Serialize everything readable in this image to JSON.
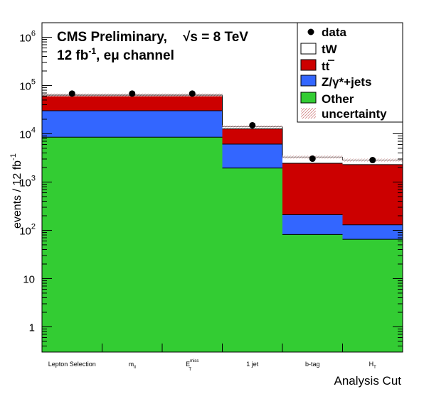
{
  "header": {
    "line1": "CMS Preliminary,",
    "sqrt_s": "√s = 8 TeV",
    "lumi": "12 fb",
    "lumi_exp": "-1",
    "channel": ", eμ channel"
  },
  "chart_data": {
    "type": "bar",
    "stacked": true,
    "log_y": true,
    "xlabel": "Analysis Cut",
    "ylabel": "events / 12 fb",
    "ylabel_exp": "-1",
    "ylim": [
      0.3,
      2000000
    ],
    "y_ticks": [
      {
        "value": 1,
        "label": "1",
        "exp": ""
      },
      {
        "value": 10,
        "label": "10",
        "exp": ""
      },
      {
        "value": 100,
        "label": "10",
        "exp": "2"
      },
      {
        "value": 1000,
        "label": "10",
        "exp": "3"
      },
      {
        "value": 10000,
        "label": "10",
        "exp": "4"
      },
      {
        "value": 100000,
        "label": "10",
        "exp": "5"
      },
      {
        "value": 1000000,
        "label": "10",
        "exp": "6"
      }
    ],
    "categories": [
      {
        "label": "Lepton Selection",
        "sub": "",
        "sup": ""
      },
      {
        "label": "m",
        "sub": "ll",
        "sup": ""
      },
      {
        "label": "E",
        "sub": "T",
        "sup": "miss"
      },
      {
        "label": "1 jet",
        "sub": "",
        "sup": ""
      },
      {
        "label": "b-tag",
        "sub": "",
        "sup": ""
      },
      {
        "label": "H",
        "sub": "T",
        "sup": ""
      }
    ],
    "series": [
      {
        "name": "Other",
        "color": "#33cc33",
        "values": [
          8500,
          8500,
          8500,
          1950,
          82,
          65
        ]
      },
      {
        "name": "Z/γ*+jets",
        "color": "#3366ff",
        "values": [
          21500,
          21500,
          21500,
          4150,
          128,
          65
        ]
      },
      {
        "name": "t̄t",
        "color": "#cc0000",
        "values": [
          32000,
          32000,
          32000,
          6500,
          2240,
          2170
        ]
      },
      {
        "name": "tW",
        "color": "#ffffff",
        "values": [
          2000,
          2000,
          2000,
          1400,
          850,
          550
        ]
      }
    ],
    "data": {
      "name": "data",
      "values": [
        68000,
        68000,
        68000,
        15000,
        3050,
        2850
      ]
    },
    "uncertainty_label": "uncertainty",
    "legend_position": "top-right",
    "grid": false
  },
  "legend": {
    "data": "data",
    "tw": "tW",
    "ttbar": "tt",
    "zjets": "Z/γ*+jets",
    "other": "Other",
    "uncertainty": "uncertainty"
  }
}
